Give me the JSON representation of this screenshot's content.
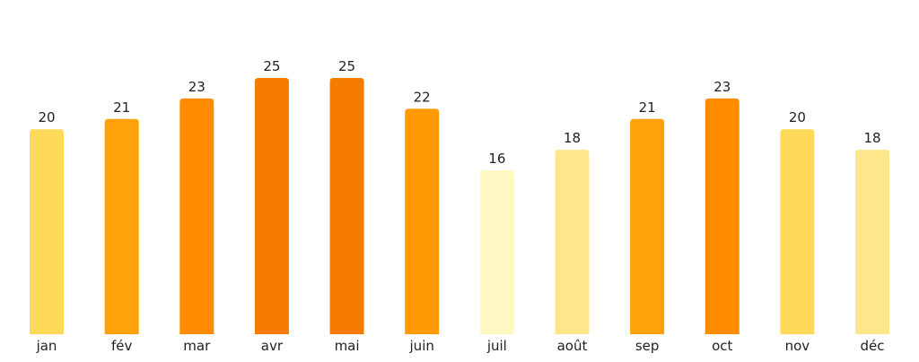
{
  "chart_data": {
    "type": "bar",
    "categories": [
      "jan",
      "fév",
      "mar",
      "avr",
      "mai",
      "juin",
      "juil",
      "août",
      "sep",
      "oct",
      "nov",
      "déc"
    ],
    "values": [
      20,
      21,
      23,
      25,
      25,
      22,
      16,
      18,
      21,
      23,
      20,
      18
    ],
    "bar_colors": [
      "#FFD95A",
      "#FFA10A",
      "#FF8C00",
      "#F57C00",
      "#F57C00",
      "#FF9A05",
      "#FFF8C2",
      "#FFE68A",
      "#FFA10A",
      "#FF8C00",
      "#FFD95A",
      "#FFE68A"
    ],
    "title": "",
    "xlabel": "",
    "ylabel": "",
    "ylim": [
      0,
      25
    ],
    "grid": false,
    "legend": "none",
    "data_labels": true
  }
}
